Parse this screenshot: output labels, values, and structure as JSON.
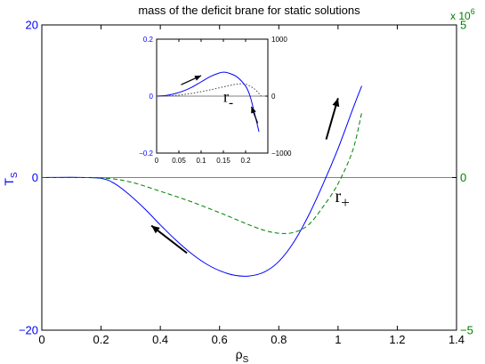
{
  "chart_data": [
    {
      "type": "line",
      "title": "mass of the deficit brane for static solutions",
      "xlabel": "ρ",
      "xlabel_sub": "S",
      "ylabel": "T",
      "ylabel_sub": "S",
      "xlim": [
        0,
        1.4
      ],
      "xticks": [
        "0",
        "0.2",
        "0.4",
        "0.6",
        "0.8",
        "1",
        "1.2",
        "1.4"
      ],
      "ylim_left": [
        -20,
        20
      ],
      "yticks_left": [
        "−20",
        "0",
        "20"
      ],
      "ylim_right": [
        -5,
        5
      ],
      "yticks_right": [
        "−5",
        "0",
        "5"
      ],
      "right_axis_multiplier": "x 10",
      "right_axis_exponent": "6",
      "grid": false,
      "colors": {
        "left_axis": "#0000ff",
        "right_axis": "#008000",
        "zero_line": "#808080"
      },
      "series": [
        {
          "axis": "left",
          "style": "solid",
          "color": "#0000ff",
          "x": [
            0,
            0.1,
            0.2,
            0.25,
            0.3,
            0.35,
            0.4,
            0.45,
            0.5,
            0.55,
            0.6,
            0.65,
            0.7,
            0.75,
            0.8,
            0.85,
            0.9,
            0.95,
            1.0,
            1.05,
            1.08
          ],
          "y": [
            0,
            0.02,
            -0.1,
            -0.9,
            -2.4,
            -4.2,
            -6.2,
            -8.1,
            -9.8,
            -11.2,
            -12.2,
            -12.8,
            -12.9,
            -12.4,
            -11.0,
            -8.5,
            -5.0,
            -0.8,
            3.8,
            9.0,
            12.0
          ]
        },
        {
          "axis": "left",
          "style": "dashed",
          "color": "#008000",
          "x": [
            0,
            0.2,
            0.3,
            0.4,
            0.5,
            0.6,
            0.65,
            0.7,
            0.75,
            0.8,
            0.85,
            0.9,
            0.95,
            1.0,
            1.05,
            1.08
          ],
          "y": [
            0,
            -0.05,
            -0.6,
            -1.8,
            -3.1,
            -4.6,
            -5.4,
            -6.2,
            -6.9,
            -7.3,
            -7.2,
            -6.2,
            -3.8,
            -0.8,
            3.6,
            8.5
          ]
        }
      ],
      "annotations": [
        {
          "text": "r",
          "sub": "+",
          "x": 0.99,
          "y": -3.2
        }
      ],
      "arrows": [
        {
          "x1": 0.49,
          "y1": -9.9,
          "x2": 0.37,
          "y2": -6.3
        },
        {
          "x1": 0.96,
          "y1": 5.0,
          "x2": 1.0,
          "y2": 10.4
        }
      ]
    },
    {
      "type": "line",
      "xlim": [
        0,
        0.25
      ],
      "xticks": [
        "0",
        "0.05",
        "0.1",
        "0.15",
        "0.2"
      ],
      "ylim_left": [
        -0.2,
        0.2
      ],
      "yticks_left": [
        "−0.2",
        "0",
        "0.2"
      ],
      "ylim_right": [
        -1000,
        1000
      ],
      "yticks_right": [
        "−1000",
        "0",
        "1000"
      ],
      "series": [
        {
          "axis": "left",
          "style": "solid",
          "color": "#0000ff",
          "x": [
            0,
            0.02,
            0.04,
            0.06,
            0.08,
            0.1,
            0.12,
            0.14,
            0.15,
            0.16,
            0.18,
            0.2,
            0.21,
            0.22,
            0.23
          ],
          "y": [
            0,
            0.002,
            0.008,
            0.018,
            0.032,
            0.05,
            0.068,
            0.081,
            0.084,
            0.082,
            0.068,
            0.035,
            0.0,
            -0.06,
            -0.125
          ]
        },
        {
          "axis": "left",
          "style": "dotted",
          "color": "#404040",
          "x": [
            0,
            0.04,
            0.08,
            0.12,
            0.16,
            0.18,
            0.2,
            0.22,
            0.235
          ],
          "y": [
            0,
            0.002,
            0.01,
            0.022,
            0.036,
            0.042,
            0.042,
            0.025,
            0.0
          ]
        }
      ],
      "annotations": [
        {
          "text": "r",
          "sub": "-",
          "x": 0.15,
          "y": -0.02
        }
      ],
      "arrows": [
        {
          "x1": 0.055,
          "y1": 0.04,
          "x2": 0.1,
          "y2": 0.072
        },
        {
          "x1": 0.227,
          "y1": -0.095,
          "x2": 0.213,
          "y2": -0.037
        }
      ]
    }
  ]
}
